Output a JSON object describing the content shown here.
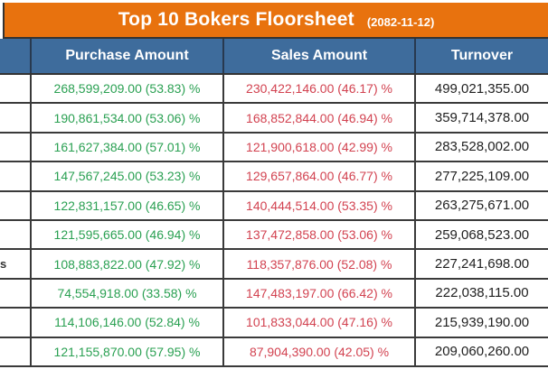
{
  "title": {
    "main": "Top 10 Bokers Floorsheet",
    "date": "(2082-11-12)"
  },
  "header": {
    "broker": "",
    "purchase": "Purchase Amount",
    "sales": "Sales Amount",
    "turnover": "Turnover"
  },
  "rows": [
    {
      "name": "",
      "purchase": "268,599,209.00 (53.83) %",
      "sales": "230,422,146.00 (46.17) %",
      "turnover": "499,021,355.00"
    },
    {
      "name": "",
      "purchase": "190,861,534.00 (53.06) %",
      "sales": "168,852,844.00 (46.94) %",
      "turnover": "359,714,378.00"
    },
    {
      "name": "",
      "purchase": "161,627,384.00 (57.01) %",
      "sales": "121,900,618.00 (42.99) %",
      "turnover": "283,528,002.00"
    },
    {
      "name": "",
      "purchase": "147,567,245.00 (53.23) %",
      "sales": "129,657,864.00 (46.77) %",
      "turnover": "277,225,109.00"
    },
    {
      "name": "",
      "purchase": "122,831,157.00 (46.65) %",
      "sales": "140,444,514.00 (53.35) %",
      "turnover": "263,275,671.00"
    },
    {
      "name": "",
      "purchase": "121,595,665.00 (46.94) %",
      "sales": "137,472,858.00 (53.06) %",
      "turnover": "259,068,523.00"
    },
    {
      "name": "s",
      "purchase": "108,883,822.00 (47.92) %",
      "sales": "118,357,876.00 (52.08) %",
      "turnover": "227,241,698.00"
    },
    {
      "name": "",
      "purchase": "74,554,918.00 (33.58) %",
      "sales": "147,483,197.00 (66.42) %",
      "turnover": "222,038,115.00"
    },
    {
      "name": "",
      "purchase": "114,106,146.00 (52.84) %",
      "sales": "101,833,044.00 (47.16) %",
      "turnover": "215,939,190.00"
    },
    {
      "name": "",
      "purchase": "121,155,870.00 (57.95) %",
      "sales": "87,904,390.00 (42.05) %",
      "turnover": "209,060,260.00"
    }
  ],
  "colors": {
    "title_bg": "#e8720e",
    "header_bg": "#3e6c9c",
    "purchase_text": "#2aa052",
    "sales_text": "#d24250",
    "turnover_text": "#1f1f1f",
    "border": "#3a3a3a",
    "title_text": "#ffffff",
    "header_text": "#ffffff"
  },
  "chart_data": {
    "type": "table",
    "title": "Top 10 Bokers Floorsheet",
    "date": "2082-11-12",
    "columns": [
      "Broker",
      "Purchase Amount",
      "Sales Amount",
      "Turnover"
    ],
    "rows": [
      {
        "broker_visible_text": "",
        "purchase_amount": 268599209.0,
        "purchase_pct": 53.83,
        "sales_amount": 230422146.0,
        "sales_pct": 46.17,
        "turnover": 499021355.0
      },
      {
        "broker_visible_text": "",
        "purchase_amount": 190861534.0,
        "purchase_pct": 53.06,
        "sales_amount": 168852844.0,
        "sales_pct": 46.94,
        "turnover": 359714378.0
      },
      {
        "broker_visible_text": "",
        "purchase_amount": 161627384.0,
        "purchase_pct": 57.01,
        "sales_amount": 121900618.0,
        "sales_pct": 42.99,
        "turnover": 283528002.0
      },
      {
        "broker_visible_text": "",
        "purchase_amount": 147567245.0,
        "purchase_pct": 53.23,
        "sales_amount": 129657864.0,
        "sales_pct": 46.77,
        "turnover": 277225109.0
      },
      {
        "broker_visible_text": "",
        "purchase_amount": 122831157.0,
        "purchase_pct": 46.65,
        "sales_amount": 140444514.0,
        "sales_pct": 53.35,
        "turnover": 263275671.0
      },
      {
        "broker_visible_text": "",
        "purchase_amount": 121595665.0,
        "purchase_pct": 46.94,
        "sales_amount": 137472858.0,
        "sales_pct": 53.06,
        "turnover": 259068523.0
      },
      {
        "broker_visible_text": "s",
        "purchase_amount": 108883822.0,
        "purchase_pct": 47.92,
        "sales_amount": 118357876.0,
        "sales_pct": 52.08,
        "turnover": 227241698.0
      },
      {
        "broker_visible_text": "",
        "purchase_amount": 74554918.0,
        "purchase_pct": 33.58,
        "sales_amount": 147483197.0,
        "sales_pct": 66.42,
        "turnover": 222038115.0
      },
      {
        "broker_visible_text": "",
        "purchase_amount": 114106146.0,
        "purchase_pct": 52.84,
        "sales_amount": 101833044.0,
        "sales_pct": 47.16,
        "turnover": 215939190.0
      },
      {
        "broker_visible_text": "",
        "purchase_amount": 121155870.0,
        "purchase_pct": 57.95,
        "sales_amount": 87904390.0,
        "sales_pct": 42.05,
        "turnover": 209060260.0
      }
    ]
  }
}
